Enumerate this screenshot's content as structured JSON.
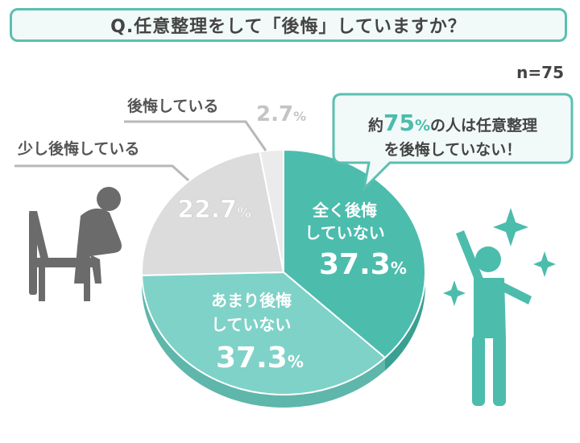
{
  "title": "Q.任意整理をして「後悔」していますか？",
  "sample_size": "n=75",
  "callout": {
    "prefix": "約",
    "number": "75",
    "percent": "%",
    "rest_line1": "の人は任意整理",
    "line2": "を後悔していない！"
  },
  "colors": {
    "accent": "#4cbcad",
    "light_teal": "#7fd2c8",
    "gray_dark": "#dcdcdc",
    "gray_light": "#ebebeb",
    "text": "#444444"
  },
  "chart_data": {
    "type": "pie",
    "title": "Q.任意整理をして「後悔」していますか？",
    "n": "n=75",
    "slices": [
      {
        "label": "全く後悔していない",
        "value": 37.3,
        "color": "#4cbcad"
      },
      {
        "label": "あまり後悔していない",
        "value": 37.3,
        "color": "#7fd2c8"
      },
      {
        "label": "少し後悔している",
        "value": 22.7,
        "color": "#dcdcdc"
      },
      {
        "label": "後悔している",
        "value": 2.7,
        "color": "#ebebeb"
      }
    ],
    "slice_labels": [
      {
        "line1": "全く後悔",
        "line2": "していない",
        "value_text": "37.3",
        "unit": "%"
      },
      {
        "line1": "あまり後悔",
        "line2": "していない",
        "value_text": "37.3",
        "unit": "%"
      },
      {
        "line1": "",
        "line2": "",
        "value_text": "22.7",
        "unit": "%"
      },
      {
        "line1": "",
        "line2": "",
        "value_text": "2.7",
        "unit": "%"
      }
    ],
    "outside_labels": [
      {
        "text": "少し後悔している"
      },
      {
        "text": "後悔している"
      }
    ]
  }
}
